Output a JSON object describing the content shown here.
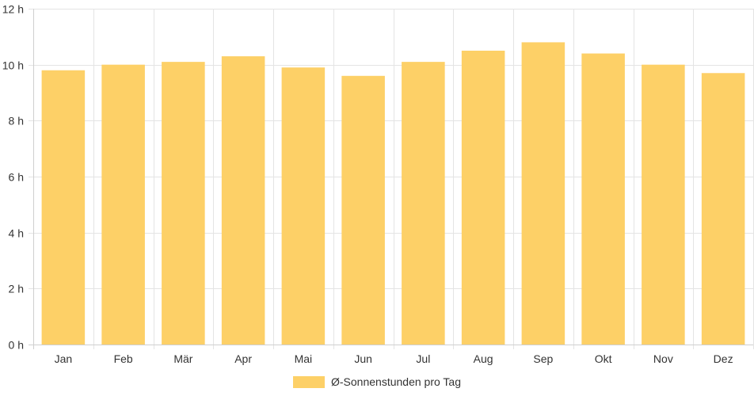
{
  "chart_data": {
    "type": "bar",
    "categories": [
      "Jan",
      "Feb",
      "Mär",
      "Apr",
      "Mai",
      "Jun",
      "Jul",
      "Aug",
      "Sep",
      "Okt",
      "Nov",
      "Dez"
    ],
    "series": [
      {
        "name": "Ø-Sonnenstunden pro Tag",
        "values": [
          9.8,
          10.0,
          10.1,
          10.3,
          9.9,
          9.6,
          10.1,
          10.5,
          10.8,
          10.4,
          10.0,
          9.7
        ],
        "color": "#fdd067"
      }
    ],
    "ylim": [
      0,
      12
    ],
    "y_ticks": [
      0,
      2,
      4,
      6,
      8,
      10,
      12
    ],
    "y_tick_labels": [
      "0 h",
      "2 h",
      "4 h",
      "6 h",
      "8 h",
      "10 h",
      "12 h"
    ],
    "grid": true,
    "legend_position": "bottom"
  }
}
